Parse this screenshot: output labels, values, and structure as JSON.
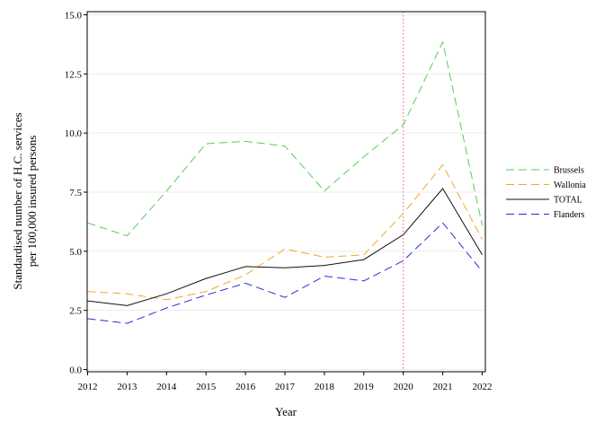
{
  "chart_data": {
    "type": "line",
    "xlabel": "Year",
    "ylabel": [
      "Standardised number of H.C. services",
      "per 100,000 insured persons"
    ],
    "x": [
      2012,
      2013,
      2014,
      2015,
      2016,
      2017,
      2018,
      2019,
      2020,
      2021,
      2022
    ],
    "x_tick_labels": [
      "2012",
      "2013",
      "2014",
      "2015",
      "2016",
      "2017",
      "2018",
      "2019",
      "2020",
      "2021",
      "2022"
    ],
    "ylim": [
      0,
      15
    ],
    "y_ticks": [
      0,
      2.5,
      5,
      7.5,
      10,
      12.5,
      15
    ],
    "y_tick_labels": [
      "0.0",
      "2.5",
      "5.0",
      "7.5",
      "10.0",
      "12.5",
      "15.0"
    ],
    "grid": "horizontal",
    "legend_position": "right",
    "reference_line": {
      "x": 2020,
      "color": "#e06070",
      "style": "dotted"
    },
    "series": [
      {
        "name": "Brussels",
        "color": "#55cc55",
        "dash": "dashed",
        "values": [
          6.2,
          5.65,
          7.55,
          9.55,
          9.65,
          9.45,
          7.55,
          9.0,
          10.35,
          13.85,
          6.1
        ]
      },
      {
        "name": "Wallonia",
        "color": "#f5a623",
        "dash": "dashed",
        "values": [
          3.3,
          3.2,
          2.95,
          3.3,
          4.0,
          5.1,
          4.75,
          4.85,
          6.6,
          8.65,
          5.5
        ]
      },
      {
        "name": "TOTAL",
        "color": "#111111",
        "dash": "solid",
        "values": [
          2.9,
          2.7,
          3.2,
          3.85,
          4.35,
          4.3,
          4.4,
          4.65,
          5.7,
          7.65,
          4.85
        ]
      },
      {
        "name": "Flanders",
        "color": "#2b2bd9",
        "dash": "dashed",
        "values": [
          2.15,
          1.95,
          2.6,
          3.15,
          3.65,
          3.05,
          3.95,
          3.75,
          4.6,
          6.2,
          4.15
        ]
      }
    ]
  }
}
